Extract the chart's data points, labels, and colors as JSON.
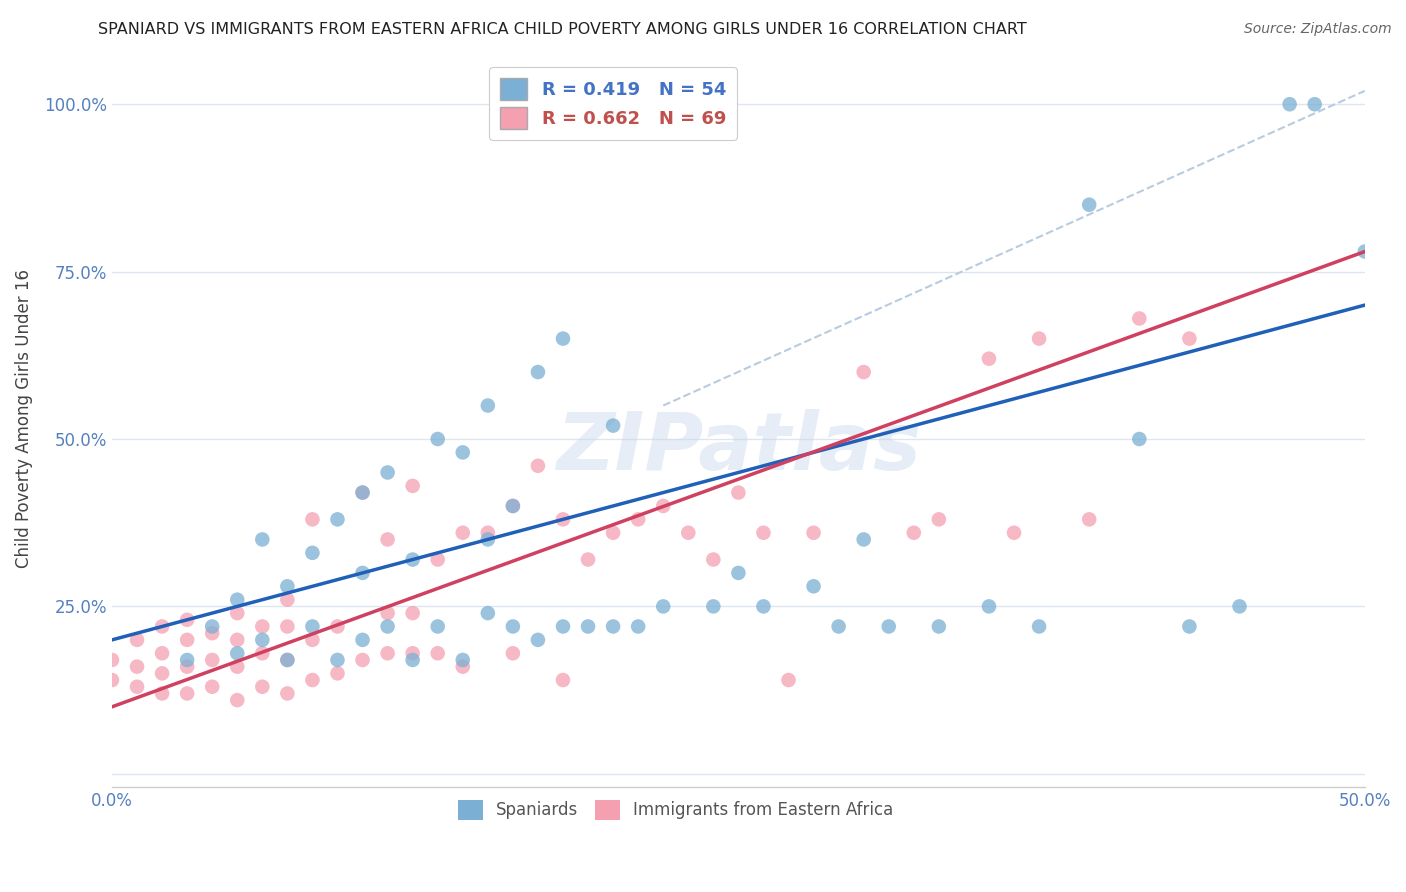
{
  "title": "SPANIARD VS IMMIGRANTS FROM EASTERN AFRICA CHILD POVERTY AMONG GIRLS UNDER 16 CORRELATION CHART",
  "source": "Source: ZipAtlas.com",
  "ylabel_label": "Child Poverty Among Girls Under 16",
  "xlim": [
    0.0,
    0.5
  ],
  "ylim": [
    -0.02,
    1.08
  ],
  "blue_R": 0.419,
  "blue_N": 54,
  "pink_R": 0.662,
  "pink_N": 69,
  "blue_color": "#7bafd4",
  "pink_color": "#f4a0b0",
  "blue_line_color": "#2060b8",
  "pink_line_color": "#d04060",
  "dashed_line_color": "#b8cce0",
  "legend_blue_label": "Spaniards",
  "legend_pink_label": "Immigrants from Eastern Africa",
  "watermark": "ZIPatlas",
  "blue_line_x0": 0.0,
  "blue_line_y0": 0.2,
  "blue_line_x1": 0.5,
  "blue_line_y1": 0.7,
  "pink_line_x0": 0.0,
  "pink_line_y0": 0.1,
  "pink_line_x1": 0.5,
  "pink_line_y1": 0.78,
  "dash_line_x0": 0.22,
  "dash_line_y0": 0.55,
  "dash_line_x1": 0.5,
  "dash_line_y1": 1.02,
  "blue_scatter_x": [
    0.03,
    0.04,
    0.05,
    0.05,
    0.06,
    0.06,
    0.07,
    0.07,
    0.08,
    0.08,
    0.09,
    0.09,
    0.1,
    0.1,
    0.1,
    0.11,
    0.11,
    0.12,
    0.12,
    0.13,
    0.13,
    0.14,
    0.14,
    0.15,
    0.15,
    0.15,
    0.16,
    0.16,
    0.17,
    0.17,
    0.18,
    0.18,
    0.19,
    0.2,
    0.2,
    0.21,
    0.22,
    0.24,
    0.25,
    0.26,
    0.28,
    0.29,
    0.3,
    0.31,
    0.33,
    0.35,
    0.37,
    0.39,
    0.41,
    0.43,
    0.45,
    0.47,
    0.48,
    0.5
  ],
  "blue_scatter_y": [
    0.17,
    0.22,
    0.18,
    0.26,
    0.2,
    0.35,
    0.17,
    0.28,
    0.22,
    0.33,
    0.17,
    0.38,
    0.2,
    0.3,
    0.42,
    0.22,
    0.45,
    0.17,
    0.32,
    0.22,
    0.5,
    0.17,
    0.48,
    0.24,
    0.35,
    0.55,
    0.22,
    0.4,
    0.2,
    0.6,
    0.22,
    0.65,
    0.22,
    0.22,
    0.52,
    0.22,
    0.25,
    0.25,
    0.3,
    0.25,
    0.28,
    0.22,
    0.35,
    0.22,
    0.22,
    0.25,
    0.22,
    0.85,
    0.5,
    0.22,
    0.25,
    1.0,
    1.0,
    0.78
  ],
  "pink_scatter_x": [
    0.0,
    0.0,
    0.01,
    0.01,
    0.01,
    0.02,
    0.02,
    0.02,
    0.02,
    0.03,
    0.03,
    0.03,
    0.03,
    0.04,
    0.04,
    0.04,
    0.05,
    0.05,
    0.05,
    0.05,
    0.06,
    0.06,
    0.06,
    0.07,
    0.07,
    0.07,
    0.07,
    0.08,
    0.08,
    0.08,
    0.09,
    0.09,
    0.1,
    0.1,
    0.11,
    0.11,
    0.11,
    0.12,
    0.12,
    0.12,
    0.13,
    0.13,
    0.14,
    0.14,
    0.15,
    0.16,
    0.16,
    0.17,
    0.18,
    0.18,
    0.19,
    0.2,
    0.21,
    0.22,
    0.23,
    0.24,
    0.25,
    0.26,
    0.27,
    0.28,
    0.3,
    0.32,
    0.33,
    0.35,
    0.36,
    0.37,
    0.39,
    0.41,
    0.43
  ],
  "pink_scatter_y": [
    0.14,
    0.17,
    0.13,
    0.16,
    0.2,
    0.12,
    0.15,
    0.18,
    0.22,
    0.12,
    0.16,
    0.2,
    0.23,
    0.13,
    0.17,
    0.21,
    0.11,
    0.16,
    0.2,
    0.24,
    0.13,
    0.18,
    0.22,
    0.12,
    0.17,
    0.22,
    0.26,
    0.14,
    0.2,
    0.38,
    0.15,
    0.22,
    0.17,
    0.42,
    0.18,
    0.24,
    0.35,
    0.18,
    0.24,
    0.43,
    0.18,
    0.32,
    0.16,
    0.36,
    0.36,
    0.18,
    0.4,
    0.46,
    0.38,
    0.14,
    0.32,
    0.36,
    0.38,
    0.4,
    0.36,
    0.32,
    0.42,
    0.36,
    0.14,
    0.36,
    0.6,
    0.36,
    0.38,
    0.62,
    0.36,
    0.65,
    0.38,
    0.68,
    0.65
  ],
  "background_color": "#ffffff",
  "grid_color": "#dde6f0"
}
